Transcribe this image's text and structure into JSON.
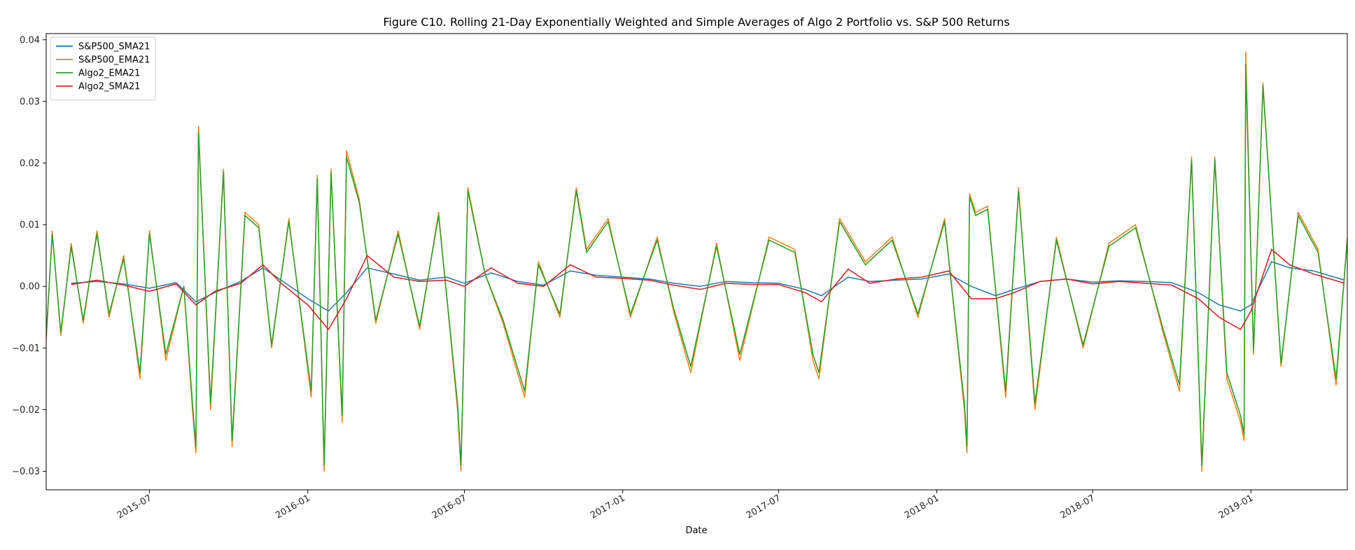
{
  "chart_data": {
    "type": "line",
    "title": "Figure C10. Rolling 21-Day Exponentially Weighted and Simple Averages of Algo 2 Portfolio vs. S&P 500 Returns",
    "xlabel": "Date",
    "ylabel": "",
    "xlim": [
      "2015-03-03",
      "2019-04-23"
    ],
    "ylim": [
      -0.033,
      0.041
    ],
    "yticks": [
      -0.03,
      -0.02,
      -0.01,
      0.0,
      0.01,
      0.02,
      0.03,
      0.04
    ],
    "ytick_labels": [
      "−0.03",
      "−0.02",
      "−0.01",
      "0.00",
      "0.01",
      "0.02",
      "0.03",
      "0.04"
    ],
    "xticks": [
      "2015-07-01",
      "2016-01-01",
      "2016-07-01",
      "2017-01-01",
      "2017-07-01",
      "2018-01-01",
      "2018-07-01",
      "2019-01-01"
    ],
    "xtick_labels": [
      "2015-07",
      "2016-01",
      "2016-07",
      "2017-01",
      "2017-07",
      "2018-01",
      "2018-07",
      "2019-01"
    ],
    "legend_position": "top-left",
    "grid": false,
    "series": [
      {
        "name": "S&P500_SMA21",
        "color": "#1f77b4",
        "x": [
          "2015-04-01",
          "2015-05-01",
          "2015-06-01",
          "2015-07-01",
          "2015-08-01",
          "2015-08-24",
          "2015-09-15",
          "2015-10-15",
          "2015-11-10",
          "2015-12-01",
          "2016-01-01",
          "2016-01-25",
          "2016-02-15",
          "2016-03-10",
          "2016-04-10",
          "2016-05-10",
          "2016-06-10",
          "2016-07-01",
          "2016-08-01",
          "2016-09-01",
          "2016-10-01",
          "2016-11-01",
          "2016-12-01",
          "2017-01-01",
          "2017-02-01",
          "2017-03-01",
          "2017-04-01",
          "2017-05-01",
          "2017-06-01",
          "2017-07-01",
          "2017-08-01",
          "2017-08-20",
          "2017-09-20",
          "2017-10-15",
          "2017-11-15",
          "2017-12-15",
          "2018-01-15",
          "2018-02-10",
          "2018-03-10",
          "2018-04-01",
          "2018-05-01",
          "2018-06-01",
          "2018-07-01",
          "2018-08-01",
          "2018-09-01",
          "2018-10-01",
          "2018-11-01",
          "2018-11-25",
          "2018-12-20",
          "2019-01-01",
          "2019-01-25",
          "2019-02-15",
          "2019-03-15",
          "2019-04-20"
        ],
        "y": [
          0.0005,
          0.0008,
          0.0004,
          -0.0003,
          0.0006,
          -0.0025,
          -0.001,
          0.0008,
          0.003,
          0.001,
          -0.002,
          -0.004,
          -0.001,
          0.003,
          0.002,
          0.001,
          0.0015,
          0.0005,
          0.0022,
          0.0008,
          0.0002,
          0.0025,
          0.0018,
          0.0015,
          0.0012,
          0.0005,
          0.0,
          0.0008,
          0.0006,
          0.0005,
          -0.0005,
          -0.0015,
          0.0015,
          0.0008,
          0.001,
          0.0012,
          0.002,
          0.0,
          -0.0015,
          -0.0005,
          0.0008,
          0.0012,
          0.0007,
          0.0009,
          0.0008,
          0.0006,
          -0.001,
          -0.003,
          -0.004,
          -0.003,
          0.004,
          0.003,
          0.0025,
          0.001
        ]
      },
      {
        "name": "S&P500_EMA21",
        "color": "#ff7f0e",
        "x": [
          "2015-03-03",
          "2015-03-10",
          "2015-03-20",
          "2015-04-01",
          "2015-04-15",
          "2015-05-01",
          "2015-05-15",
          "2015-06-01",
          "2015-06-20",
          "2015-07-01",
          "2015-07-20",
          "2015-08-10",
          "2015-08-20",
          "2015-08-24",
          "2015-08-27",
          "2015-09-10",
          "2015-09-25",
          "2015-10-05",
          "2015-10-20",
          "2015-11-05",
          "2015-11-20",
          "2015-12-10",
          "2016-01-05",
          "2016-01-12",
          "2016-01-20",
          "2016-01-28",
          "2016-02-10",
          "2016-02-15",
          "2016-03-01",
          "2016-03-20",
          "2016-04-15",
          "2016-05-10",
          "2016-06-01",
          "2016-06-23",
          "2016-06-27",
          "2016-07-05",
          "2016-07-25",
          "2016-08-15",
          "2016-09-09",
          "2016-09-25",
          "2016-10-20",
          "2016-11-08",
          "2016-11-20",
          "2016-12-15",
          "2017-01-10",
          "2017-02-10",
          "2017-03-01",
          "2017-03-21",
          "2017-04-20",
          "2017-05-17",
          "2017-06-20",
          "2017-07-20",
          "2017-08-10",
          "2017-08-17",
          "2017-09-10",
          "2017-10-10",
          "2017-11-10",
          "2017-12-10",
          "2018-01-10",
          "2018-02-02",
          "2018-02-05",
          "2018-02-08",
          "2018-02-15",
          "2018-03-01",
          "2018-03-22",
          "2018-04-06",
          "2018-04-25",
          "2018-05-20",
          "2018-06-20",
          "2018-07-20",
          "2018-08-20",
          "2018-09-20",
          "2018-10-10",
          "2018-10-24",
          "2018-11-05",
          "2018-11-20",
          "2018-12-04",
          "2018-12-20",
          "2018-12-24",
          "2018-12-26",
          "2019-01-04",
          "2019-01-15",
          "2019-02-05",
          "2019-02-25",
          "2019-03-20",
          "2019-04-10",
          "2019-04-23"
        ],
        "y": [
          -0.009,
          0.009,
          -0.008,
          0.007,
          -0.006,
          0.009,
          -0.005,
          0.005,
          -0.015,
          0.009,
          -0.012,
          0.0,
          -0.02,
          -0.027,
          0.026,
          -0.02,
          0.019,
          -0.026,
          0.012,
          0.01,
          -0.01,
          0.011,
          -0.018,
          0.018,
          -0.03,
          0.019,
          -0.022,
          0.022,
          0.014,
          -0.006,
          0.009,
          -0.007,
          0.012,
          -0.02,
          -0.03,
          0.016,
          0.002,
          -0.006,
          -0.018,
          0.004,
          -0.005,
          0.016,
          0.006,
          0.011,
          -0.005,
          0.008,
          -0.004,
          -0.014,
          0.007,
          -0.012,
          0.008,
          0.006,
          -0.012,
          -0.015,
          0.011,
          0.004,
          0.008,
          -0.005,
          0.011,
          -0.02,
          -0.027,
          0.015,
          0.012,
          0.013,
          -0.018,
          0.016,
          -0.02,
          0.008,
          -0.01,
          0.007,
          0.01,
          -0.007,
          -0.017,
          0.021,
          -0.03,
          0.021,
          -0.015,
          -0.022,
          -0.025,
          0.038,
          -0.011,
          0.033,
          -0.013,
          0.012,
          0.006,
          -0.016,
          0.008
        ]
      },
      {
        "name": "Algo2_EMA21",
        "color": "#2ca02c",
        "x": [
          "2015-03-03",
          "2015-03-10",
          "2015-03-20",
          "2015-04-01",
          "2015-04-15",
          "2015-05-01",
          "2015-05-15",
          "2015-06-01",
          "2015-06-20",
          "2015-07-01",
          "2015-07-20",
          "2015-08-10",
          "2015-08-20",
          "2015-08-24",
          "2015-08-27",
          "2015-09-10",
          "2015-09-25",
          "2015-10-05",
          "2015-10-20",
          "2015-11-05",
          "2015-11-20",
          "2015-12-10",
          "2016-01-05",
          "2016-01-12",
          "2016-01-20",
          "2016-01-28",
          "2016-02-10",
          "2016-02-15",
          "2016-03-01",
          "2016-03-20",
          "2016-04-15",
          "2016-05-10",
          "2016-06-01",
          "2016-06-23",
          "2016-06-27",
          "2016-07-05",
          "2016-07-25",
          "2016-08-15",
          "2016-09-09",
          "2016-09-25",
          "2016-10-20",
          "2016-11-08",
          "2016-11-20",
          "2016-12-15",
          "2017-01-10",
          "2017-02-10",
          "2017-03-01",
          "2017-03-21",
          "2017-04-20",
          "2017-05-17",
          "2017-06-20",
          "2017-07-20",
          "2017-08-10",
          "2017-08-17",
          "2017-09-10",
          "2017-10-10",
          "2017-11-10",
          "2017-12-10",
          "2018-01-10",
          "2018-02-02",
          "2018-02-05",
          "2018-02-08",
          "2018-02-15",
          "2018-03-01",
          "2018-03-22",
          "2018-04-06",
          "2018-04-25",
          "2018-05-20",
          "2018-06-20",
          "2018-07-20",
          "2018-08-20",
          "2018-09-20",
          "2018-10-10",
          "2018-10-24",
          "2018-11-05",
          "2018-11-20",
          "2018-12-04",
          "2018-12-20",
          "2018-12-24",
          "2018-12-26",
          "2019-01-04",
          "2019-01-15",
          "2019-02-05",
          "2019-02-25",
          "2019-03-20",
          "2019-04-10",
          "2019-04-23"
        ],
        "y": [
          -0.008,
          0.0085,
          -0.0075,
          0.0065,
          -0.0055,
          0.0085,
          -0.0045,
          0.0045,
          -0.014,
          0.0085,
          -0.011,
          0.0,
          -0.019,
          -0.026,
          0.025,
          -0.019,
          0.0185,
          -0.025,
          0.0115,
          0.0095,
          -0.0095,
          0.0105,
          -0.017,
          0.0175,
          -0.029,
          0.0185,
          -0.021,
          0.021,
          0.0135,
          -0.0055,
          0.0085,
          -0.0065,
          0.0115,
          -0.019,
          -0.029,
          0.0155,
          0.002,
          -0.0055,
          -0.017,
          0.0035,
          -0.0045,
          0.0155,
          0.0055,
          0.0105,
          -0.0045,
          0.0075,
          -0.0035,
          -0.013,
          0.0065,
          -0.011,
          0.0075,
          0.0055,
          -0.011,
          -0.014,
          0.0105,
          0.0035,
          0.0075,
          -0.0045,
          0.0105,
          -0.019,
          -0.026,
          0.0145,
          0.0115,
          0.0125,
          -0.017,
          0.0155,
          -0.019,
          0.0075,
          -0.0095,
          0.0065,
          0.0095,
          -0.0065,
          -0.016,
          0.0205,
          -0.029,
          0.0205,
          -0.014,
          -0.021,
          -0.024,
          0.036,
          -0.0105,
          0.0325,
          -0.0125,
          0.0115,
          0.0055,
          -0.015,
          0.0075
        ]
      },
      {
        "name": "Algo2_SMA21",
        "color": "#d62728",
        "x": [
          "2015-04-01",
          "2015-05-01",
          "2015-06-01",
          "2015-07-01",
          "2015-08-01",
          "2015-08-24",
          "2015-09-15",
          "2015-10-15",
          "2015-11-10",
          "2015-12-01",
          "2016-01-01",
          "2016-01-25",
          "2016-02-15",
          "2016-03-10",
          "2016-04-10",
          "2016-05-10",
          "2016-06-10",
          "2016-07-01",
          "2016-08-01",
          "2016-09-01",
          "2016-10-01",
          "2016-11-01",
          "2016-12-01",
          "2017-01-01",
          "2017-02-01",
          "2017-03-01",
          "2017-04-01",
          "2017-05-01",
          "2017-06-01",
          "2017-07-01",
          "2017-08-01",
          "2017-08-20",
          "2017-09-20",
          "2017-10-15",
          "2017-11-15",
          "2017-12-15",
          "2018-01-15",
          "2018-02-10",
          "2018-03-10",
          "2018-04-01",
          "2018-05-01",
          "2018-06-01",
          "2018-07-01",
          "2018-08-01",
          "2018-09-01",
          "2018-10-01",
          "2018-11-01",
          "2018-11-25",
          "2018-12-20",
          "2019-01-01",
          "2019-01-25",
          "2019-02-15",
          "2019-03-15",
          "2019-04-20"
        ],
        "y": [
          0.0003,
          0.001,
          0.0002,
          -0.0008,
          0.0004,
          -0.003,
          -0.0008,
          0.0005,
          0.0035,
          0.0005,
          -0.003,
          -0.007,
          -0.002,
          0.005,
          0.0015,
          0.0008,
          0.001,
          0.0,
          0.003,
          0.0005,
          0.0,
          0.0035,
          0.0015,
          0.0013,
          0.001,
          0.0002,
          -0.0005,
          0.0005,
          0.0003,
          0.0003,
          -0.001,
          -0.0025,
          0.0028,
          0.0005,
          0.0012,
          0.0015,
          0.0025,
          -0.002,
          -0.002,
          -0.001,
          0.0008,
          0.0012,
          0.0004,
          0.0008,
          0.0005,
          0.0002,
          -0.002,
          -0.005,
          -0.007,
          -0.004,
          0.006,
          0.0035,
          0.002,
          0.0005
        ]
      }
    ]
  }
}
